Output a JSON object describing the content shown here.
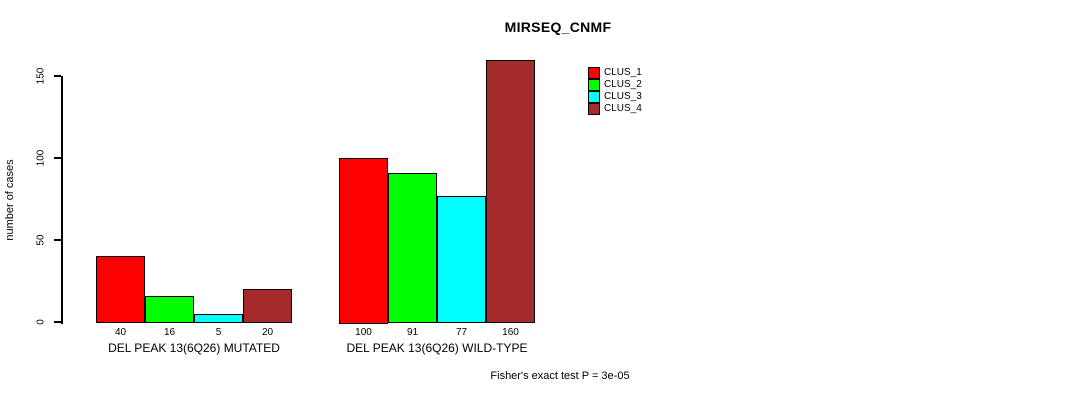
{
  "chart_data": {
    "type": "bar",
    "title": "MIRSEQ_CNMF",
    "ylabel": "number of cases",
    "xlabel": "",
    "ylim": [
      0,
      164
    ],
    "y_ticks": [
      0,
      50,
      100,
      150
    ],
    "grid": false,
    "legend_position": "top-right",
    "bar_value_labels_shown": true,
    "categories": [
      "DEL PEAK 13(6Q26) MUTATED",
      "DEL PEAK 13(6Q26) WILD-TYPE"
    ],
    "series": [
      {
        "name": "CLUS_1",
        "color": "#ff0000",
        "values": [
          40,
          100
        ]
      },
      {
        "name": "CLUS_2",
        "color": "#00ff00",
        "values": [
          16,
          91
        ]
      },
      {
        "name": "CLUS_3",
        "color": "#00ffff",
        "values": [
          5,
          77
        ]
      },
      {
        "name": "CLUS_4",
        "color": "#a52a2a",
        "values": [
          20,
          160
        ]
      }
    ],
    "annotation": "Fisher's exact test P = 3e-05"
  }
}
